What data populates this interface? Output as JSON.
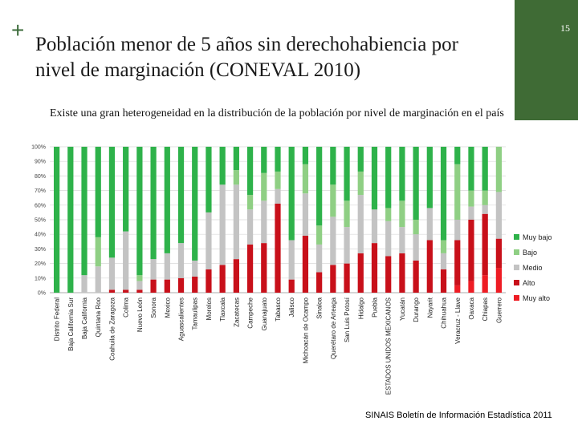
{
  "slide": {
    "title": "Población menor de 5 años sin derechohabiencia por nivel de marginación (CONEVAL 2010)",
    "subtitle": "Existe una gran heterogeneidad en la distribución de la población por nivel de marginación en el país",
    "page_number": "15",
    "source": "SINAIS Boletín de Información Estadística 2011",
    "plus_glyph": "+"
  },
  "colors": {
    "accent_green": "#3f6b35",
    "muy_bajo": "#2eb24a",
    "bajo": "#8fcf84",
    "medio": "#c3c3c3",
    "alto": "#c8101a",
    "muy_alto": "#ee1c24"
  },
  "chart_data": {
    "type": "bar",
    "stacked": true,
    "percent": true,
    "ylim": [
      0,
      100
    ],
    "yticks": [
      "0%",
      "10%",
      "20%",
      "30%",
      "40%",
      "50%",
      "60%",
      "70%",
      "80%",
      "90%",
      "100%"
    ],
    "grid": true,
    "legend_position": "right",
    "categories": [
      "Distrito Federal",
      "Baja California Sur",
      "Baja California",
      "Quintana Roo",
      "Coahuila de Zaragoza",
      "Colima",
      "Nuevo León",
      "Sonora",
      "Mexico",
      "Aguascalientes",
      "Tamaulipas",
      "Morelos",
      "Tlaxcala",
      "Zacatecas",
      "Campeche",
      "Guanajuato",
      "Tabasco",
      "Jalisco",
      "Michoacán de Ocampo",
      "Sinaloa",
      "Querétaro de Arteaga",
      "San Luis Potosí",
      "Hidalgo",
      "Puebla",
      "ESTADOS UNIDOS MEXICANOS",
      "Yucatán",
      "Durango",
      "Nayarit",
      "Chihuahua",
      "Veracruz - Llave",
      "Oaxaca",
      "Chiapas",
      "Guerrero"
    ],
    "series": [
      {
        "name": "Muy alto",
        "values": [
          0,
          0,
          0,
          0,
          0,
          0,
          0,
          0,
          0,
          0,
          0,
          0,
          0,
          0,
          0,
          0,
          0,
          0,
          0,
          0,
          0,
          0,
          0,
          0,
          0,
          0,
          0,
          0,
          0,
          5,
          8,
          12,
          17
        ]
      },
      {
        "name": "Alto",
        "values": [
          0,
          0,
          0,
          0,
          2,
          2,
          2,
          9,
          9,
          10,
          11,
          16,
          19,
          23,
          33,
          34,
          61,
          9,
          39,
          14,
          19,
          20,
          27,
          34,
          25,
          27,
          22,
          36,
          16,
          31,
          42,
          42,
          20
        ]
      },
      {
        "name": "Medio",
        "values": [
          0,
          0,
          12,
          18,
          22,
          40,
          6,
          14,
          18,
          24,
          11,
          39,
          55,
          51,
          24,
          29,
          10,
          27,
          29,
          19,
          33,
          25,
          40,
          23,
          24,
          18,
          18,
          22,
          11,
          14,
          9,
          6,
          32
        ]
      },
      {
        "name": "Bajo",
        "values": [
          0,
          0,
          0,
          20,
          0,
          0,
          4,
          0,
          0,
          0,
          0,
          0,
          0,
          10,
          10,
          19,
          12,
          0,
          20,
          13,
          22,
          18,
          16,
          0,
          9,
          18,
          10,
          0,
          9,
          38,
          11,
          10,
          31
        ]
      },
      {
        "name": "Muy bajo",
        "values": [
          100,
          100,
          88,
          62,
          76,
          58,
          88,
          77,
          73,
          66,
          78,
          45,
          26,
          16,
          33,
          18,
          17,
          64,
          12,
          54,
          26,
          37,
          17,
          43,
          42,
          37,
          50,
          42,
          64,
          12,
          30,
          30,
          0
        ]
      }
    ]
  }
}
